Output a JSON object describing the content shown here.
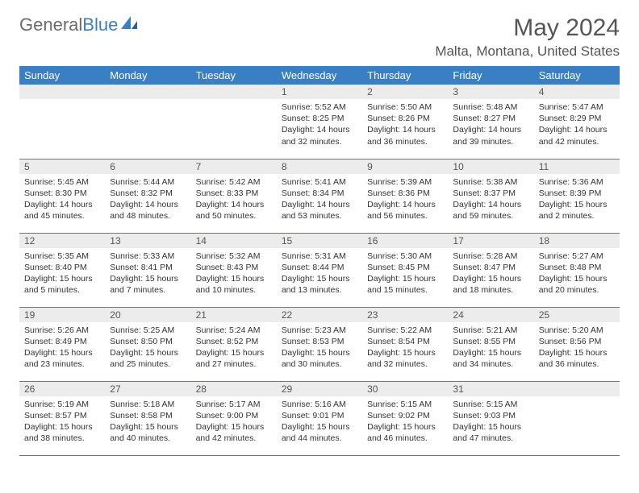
{
  "brand": {
    "part1": "General",
    "part2": "Blue"
  },
  "title": "May 2024",
  "location": "Malta, Montana, United States",
  "header_bg": "#3a7fc4",
  "dayname_bg": "#ececec",
  "border_color": "#4a7fa8",
  "day_headers": [
    "Sunday",
    "Monday",
    "Tuesday",
    "Wednesday",
    "Thursday",
    "Friday",
    "Saturday"
  ],
  "weeks": [
    [
      null,
      null,
      null,
      {
        "n": "1",
        "sr": "5:52 AM",
        "ss": "8:25 PM",
        "dl": "14 hours and 32 minutes."
      },
      {
        "n": "2",
        "sr": "5:50 AM",
        "ss": "8:26 PM",
        "dl": "14 hours and 36 minutes."
      },
      {
        "n": "3",
        "sr": "5:48 AM",
        "ss": "8:27 PM",
        "dl": "14 hours and 39 minutes."
      },
      {
        "n": "4",
        "sr": "5:47 AM",
        "ss": "8:29 PM",
        "dl": "14 hours and 42 minutes."
      }
    ],
    [
      {
        "n": "5",
        "sr": "5:45 AM",
        "ss": "8:30 PM",
        "dl": "14 hours and 45 minutes."
      },
      {
        "n": "6",
        "sr": "5:44 AM",
        "ss": "8:32 PM",
        "dl": "14 hours and 48 minutes."
      },
      {
        "n": "7",
        "sr": "5:42 AM",
        "ss": "8:33 PM",
        "dl": "14 hours and 50 minutes."
      },
      {
        "n": "8",
        "sr": "5:41 AM",
        "ss": "8:34 PM",
        "dl": "14 hours and 53 minutes."
      },
      {
        "n": "9",
        "sr": "5:39 AM",
        "ss": "8:36 PM",
        "dl": "14 hours and 56 minutes."
      },
      {
        "n": "10",
        "sr": "5:38 AM",
        "ss": "8:37 PM",
        "dl": "14 hours and 59 minutes."
      },
      {
        "n": "11",
        "sr": "5:36 AM",
        "ss": "8:39 PM",
        "dl": "15 hours and 2 minutes."
      }
    ],
    [
      {
        "n": "12",
        "sr": "5:35 AM",
        "ss": "8:40 PM",
        "dl": "15 hours and 5 minutes."
      },
      {
        "n": "13",
        "sr": "5:33 AM",
        "ss": "8:41 PM",
        "dl": "15 hours and 7 minutes."
      },
      {
        "n": "14",
        "sr": "5:32 AM",
        "ss": "8:43 PM",
        "dl": "15 hours and 10 minutes."
      },
      {
        "n": "15",
        "sr": "5:31 AM",
        "ss": "8:44 PM",
        "dl": "15 hours and 13 minutes."
      },
      {
        "n": "16",
        "sr": "5:30 AM",
        "ss": "8:45 PM",
        "dl": "15 hours and 15 minutes."
      },
      {
        "n": "17",
        "sr": "5:28 AM",
        "ss": "8:47 PM",
        "dl": "15 hours and 18 minutes."
      },
      {
        "n": "18",
        "sr": "5:27 AM",
        "ss": "8:48 PM",
        "dl": "15 hours and 20 minutes."
      }
    ],
    [
      {
        "n": "19",
        "sr": "5:26 AM",
        "ss": "8:49 PM",
        "dl": "15 hours and 23 minutes."
      },
      {
        "n": "20",
        "sr": "5:25 AM",
        "ss": "8:50 PM",
        "dl": "15 hours and 25 minutes."
      },
      {
        "n": "21",
        "sr": "5:24 AM",
        "ss": "8:52 PM",
        "dl": "15 hours and 27 minutes."
      },
      {
        "n": "22",
        "sr": "5:23 AM",
        "ss": "8:53 PM",
        "dl": "15 hours and 30 minutes."
      },
      {
        "n": "23",
        "sr": "5:22 AM",
        "ss": "8:54 PM",
        "dl": "15 hours and 32 minutes."
      },
      {
        "n": "24",
        "sr": "5:21 AM",
        "ss": "8:55 PM",
        "dl": "15 hours and 34 minutes."
      },
      {
        "n": "25",
        "sr": "5:20 AM",
        "ss": "8:56 PM",
        "dl": "15 hours and 36 minutes."
      }
    ],
    [
      {
        "n": "26",
        "sr": "5:19 AM",
        "ss": "8:57 PM",
        "dl": "15 hours and 38 minutes."
      },
      {
        "n": "27",
        "sr": "5:18 AM",
        "ss": "8:58 PM",
        "dl": "15 hours and 40 minutes."
      },
      {
        "n": "28",
        "sr": "5:17 AM",
        "ss": "9:00 PM",
        "dl": "15 hours and 42 minutes."
      },
      {
        "n": "29",
        "sr": "5:16 AM",
        "ss": "9:01 PM",
        "dl": "15 hours and 44 minutes."
      },
      {
        "n": "30",
        "sr": "5:15 AM",
        "ss": "9:02 PM",
        "dl": "15 hours and 46 minutes."
      },
      {
        "n": "31",
        "sr": "5:15 AM",
        "ss": "9:03 PM",
        "dl": "15 hours and 47 minutes."
      },
      null
    ]
  ],
  "labels": {
    "sunrise": "Sunrise: ",
    "sunset": "Sunset: ",
    "daylight": "Daylight: "
  }
}
